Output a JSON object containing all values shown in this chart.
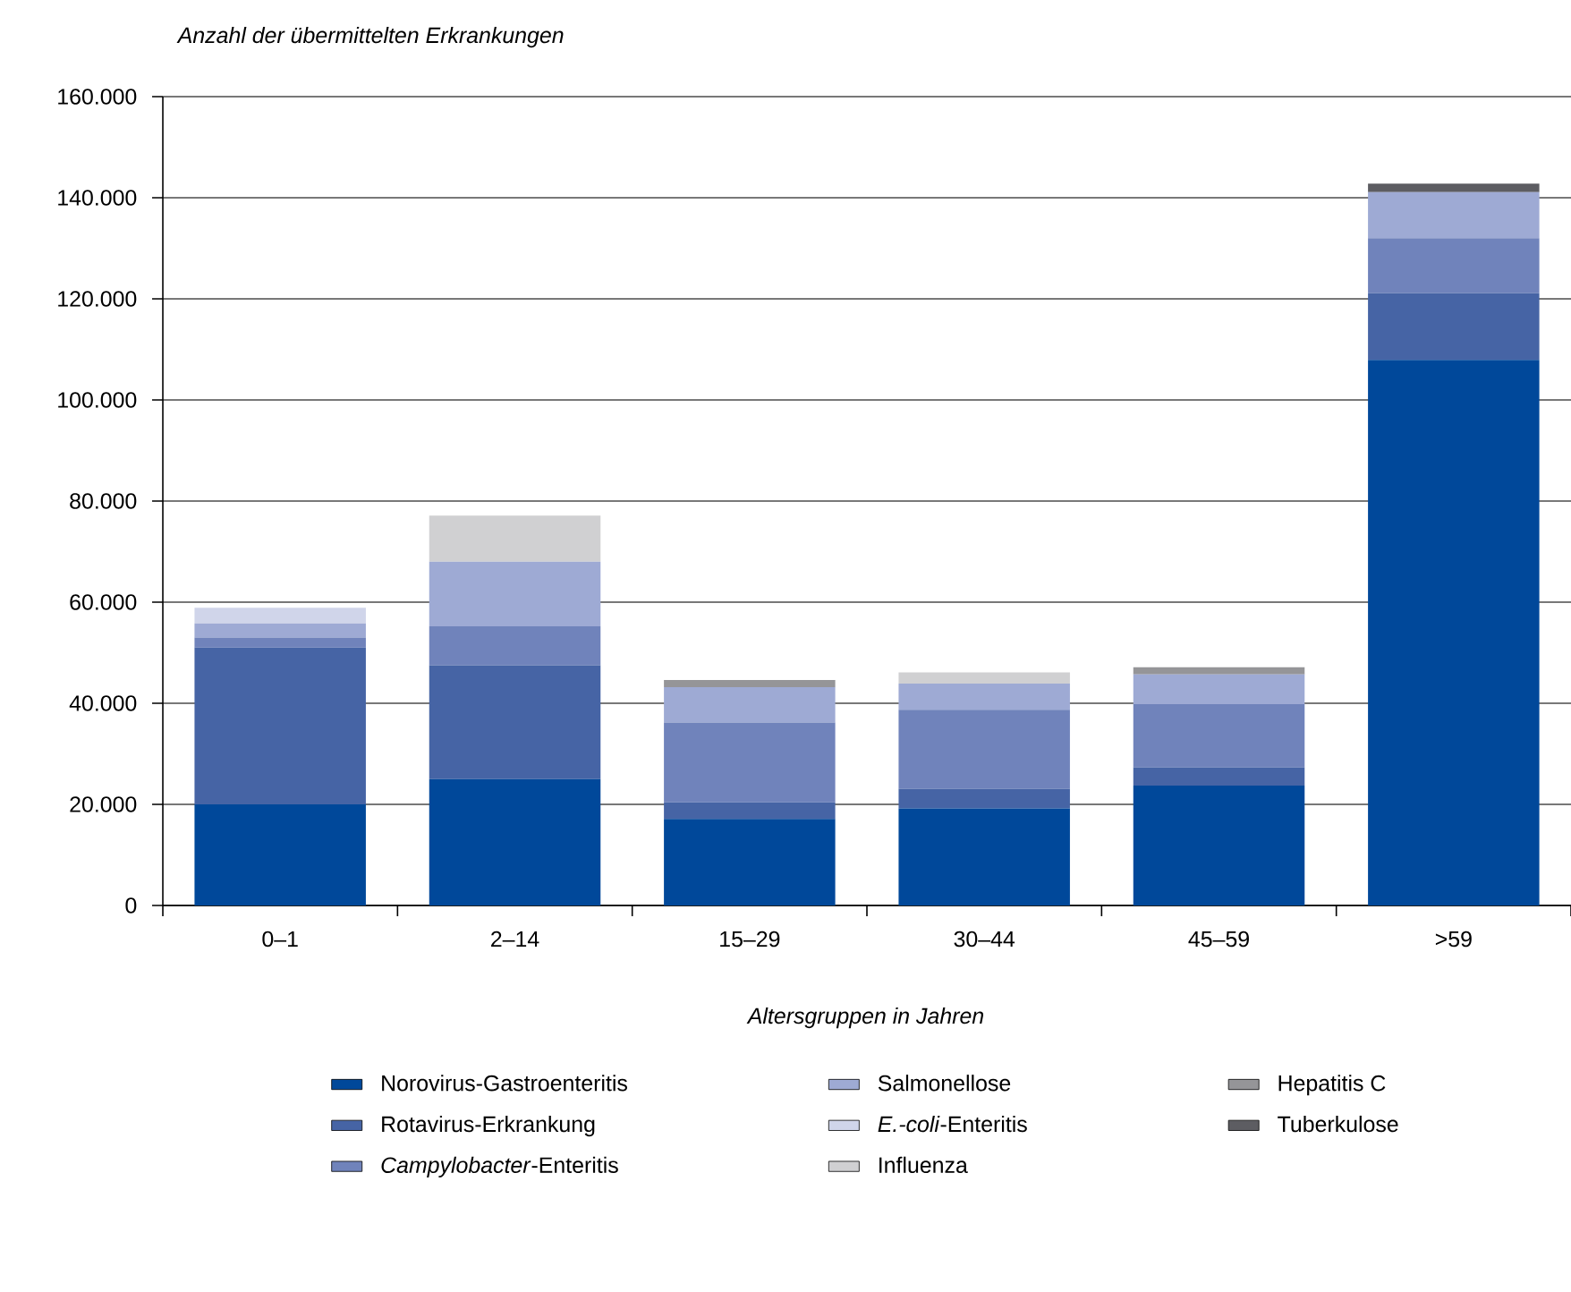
{
  "chart_data": {
    "type": "bar",
    "stacked": true,
    "ylabel": "Anzahl der übermittelten Erkrankungen",
    "xlabel": "Altersgruppen in Jahren",
    "categories": [
      "0–1",
      "2–14",
      "15–29",
      "30–44",
      "45–59",
      ">59"
    ],
    "series": [
      {
        "name": "Norovirus-Gastroenteritis",
        "color": "#00489a",
        "values": [
          20000,
          25000,
          17100,
          19200,
          23700,
          107900
        ]
      },
      {
        "name": "Rotavirus-Erkrankung",
        "color": "#4664a5",
        "values": [
          31000,
          22500,
          3300,
          3900,
          3600,
          13200
        ]
      },
      {
        "name": "*Campylobacter*-Enteritis",
        "color": "#7083bb",
        "values": [
          2000,
          7700,
          15800,
          15600,
          12500,
          10900
        ]
      },
      {
        "name": "Salmonellose",
        "color": "#9eaad4",
        "values": [
          2800,
          12800,
          7000,
          5200,
          5900,
          9100
        ]
      },
      {
        "name": "*E.-coli*-Enteritis",
        "color": "#d0d5ea",
        "values": [
          3100,
          null,
          null,
          null,
          null,
          null
        ]
      },
      {
        "name": "Influenza",
        "color": "#d0d0d2",
        "values": [
          null,
          9100,
          null,
          2200,
          null,
          null
        ]
      },
      {
        "name": "Hepatitis C",
        "color": "#959598",
        "values": [
          null,
          null,
          1400,
          null,
          1400,
          null
        ]
      },
      {
        "name": "Tuberkulose",
        "color": "#5d5d62",
        "values": [
          null,
          null,
          null,
          null,
          null,
          1700
        ]
      }
    ],
    "ylim": [
      0,
      160000
    ],
    "yticks": [
      {
        "value": 0,
        "label": "0"
      },
      {
        "value": 20000,
        "label": "20.000"
      },
      {
        "value": 40000,
        "label": "40.000"
      },
      {
        "value": 60000,
        "label": "60.000"
      },
      {
        "value": 80000,
        "label": "80.000"
      },
      {
        "value": 100000,
        "label": "100.000"
      },
      {
        "value": 120000,
        "label": "120.000"
      },
      {
        "value": 140000,
        "label": "140.000"
      },
      {
        "value": 160000,
        "label": "160.000"
      }
    ],
    "grid": "y",
    "legend": "bottom"
  }
}
